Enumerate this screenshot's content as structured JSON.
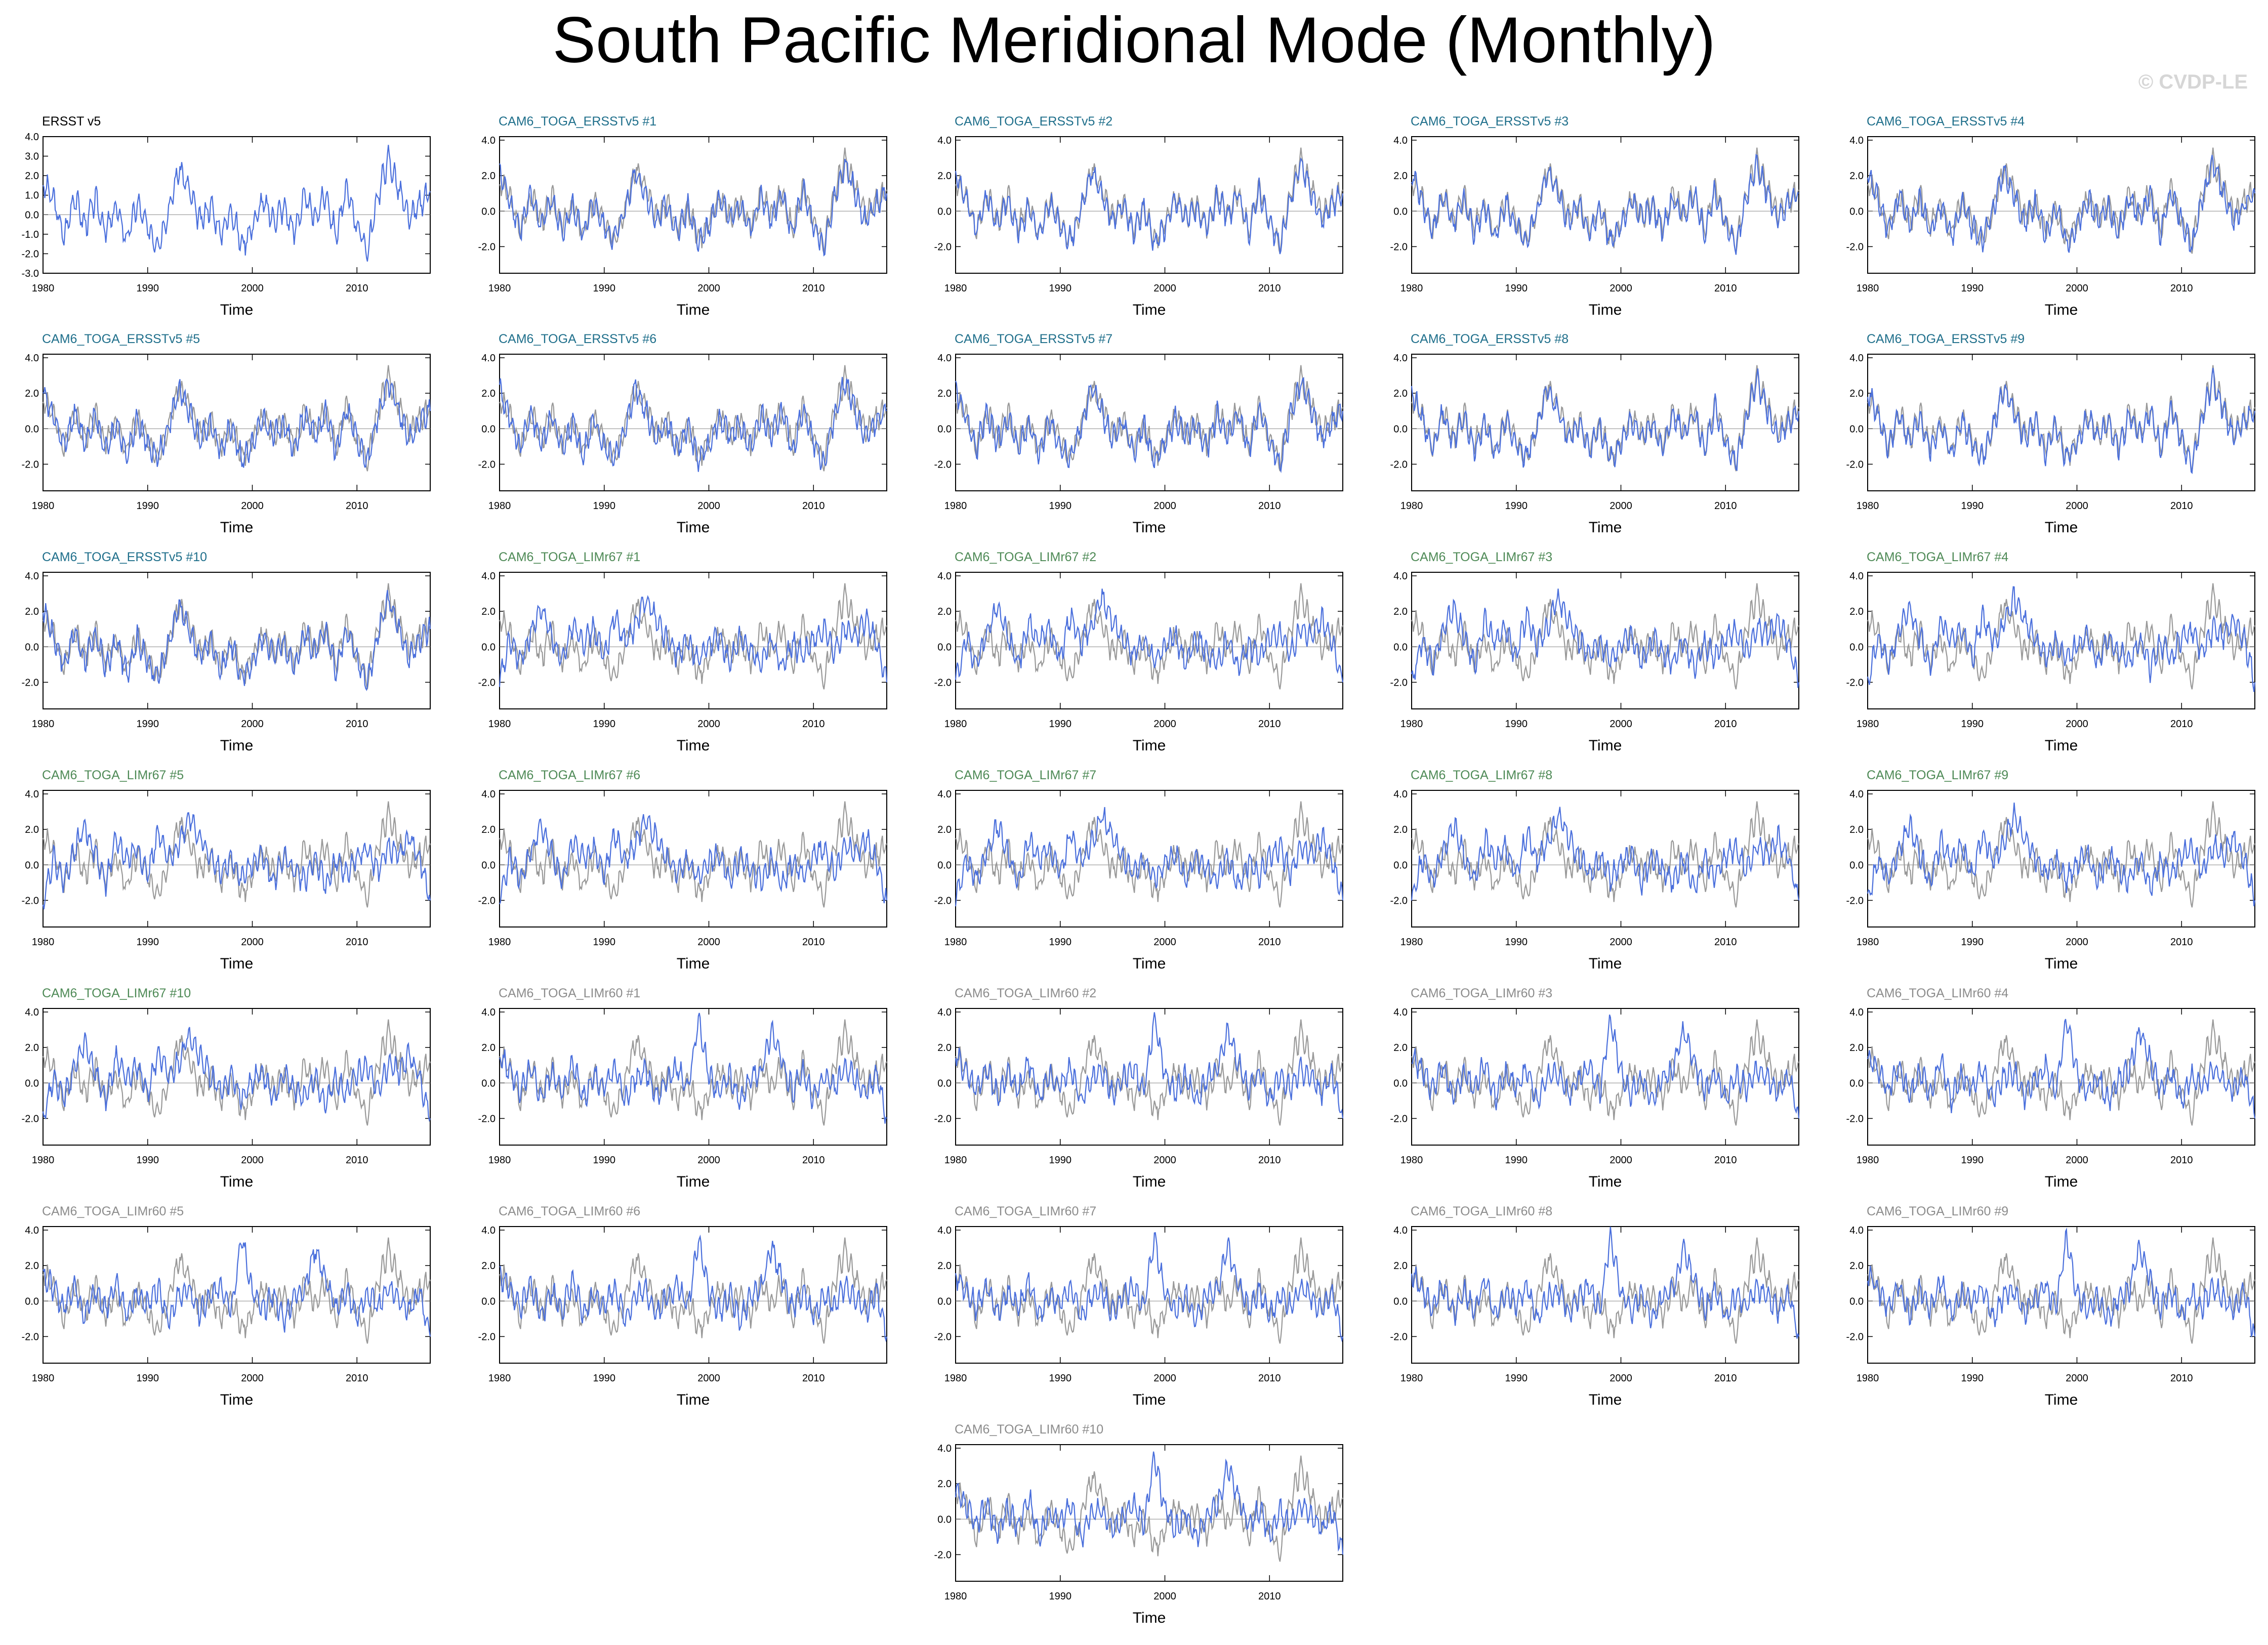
{
  "title": "South Pacific Meridional Mode (Monthly)",
  "watermark": "© CVDP-LE",
  "colors": {
    "observed": "#999999",
    "simulated": "#4a6fdc",
    "zero_line": "#888888",
    "title_ersst": "#000000",
    "title_ersst_members": "#1f6f8b",
    "title_limr67": "#4e8a56",
    "title_limr60": "#8c8c8c"
  },
  "chart_data": {
    "type": "line",
    "xlabel": "Time",
    "xlim": [
      1980,
      2017
    ],
    "xticks": [
      1980,
      1990,
      2000,
      2010
    ],
    "xtick_labels": [
      "1980",
      "1990",
      "2000",
      "2010"
    ],
    "ylim_obs": [
      -3.0,
      4.0
    ],
    "yticks_obs": [
      4.0,
      3.0,
      2.0,
      1.0,
      0.0,
      -1.0,
      -2.0,
      -3.0
    ],
    "ytick_labels_obs": [
      "4.0",
      "3.0",
      "2.0",
      "1.0",
      "0.0",
      "-1.0",
      "-2.0",
      "-3.0"
    ],
    "ylim": [
      -3.5,
      4.2
    ],
    "yticks": [
      4.0,
      2.0,
      0.0,
      -2.0
    ],
    "ytick_labels": [
      "4.0",
      "2.0",
      "0.0",
      "-2.0"
    ],
    "zero_line": true,
    "observed_series": {
      "name": "ERSST v5",
      "x": [
        1980,
        1981,
        1982,
        1983,
        1984,
        1985,
        1986,
        1987,
        1988,
        1989,
        1990,
        1991,
        1992,
        1993,
        1994,
        1995,
        1996,
        1997,
        1998,
        1999,
        2000,
        2001,
        2002,
        2003,
        2004,
        2005,
        2006,
        2007,
        2008,
        2009,
        2010,
        2011,
        2012,
        2013,
        2014,
        2015,
        2016,
        2017
      ],
      "y": [
        1.6,
        0.8,
        -1.2,
        1.0,
        -0.6,
        0.8,
        -0.9,
        0.4,
        -1.3,
        0.6,
        -0.7,
        -1.5,
        0.2,
        2.4,
        1.2,
        -0.4,
        0.5,
        -1.0,
        0.3,
        -1.6,
        -0.6,
        0.7,
        -0.3,
        0.4,
        -0.9,
        0.9,
        -0.2,
        1.1,
        -1.1,
        1.3,
        -0.5,
        -1.9,
        1.0,
        2.9,
        1.3,
        -0.3,
        0.6,
        1.2
      ]
    },
    "panels": [
      {
        "title": "ERSST v5",
        "group": "obs"
      },
      {
        "title": "CAM6_TOGA_ERSSTv5 #1",
        "group": "ersst"
      },
      {
        "title": "CAM6_TOGA_ERSSTv5 #2",
        "group": "ersst"
      },
      {
        "title": "CAM6_TOGA_ERSSTv5 #3",
        "group": "ersst"
      },
      {
        "title": "CAM6_TOGA_ERSSTv5 #4",
        "group": "ersst"
      },
      {
        "title": "CAM6_TOGA_ERSSTv5 #5",
        "group": "ersst"
      },
      {
        "title": "CAM6_TOGA_ERSSTv5 #6",
        "group": "ersst"
      },
      {
        "title": "CAM6_TOGA_ERSSTv5 #7",
        "group": "ersst"
      },
      {
        "title": "CAM6_TOGA_ERSSTv5 #8",
        "group": "ersst"
      },
      {
        "title": "CAM6_TOGA_ERSSTv5 #9",
        "group": "ersst"
      },
      {
        "title": "CAM6_TOGA_ERSSTv5 #10",
        "group": "ersst"
      },
      {
        "title": "CAM6_TOGA_LIMr67 #1",
        "group": "limr67"
      },
      {
        "title": "CAM6_TOGA_LIMr67 #2",
        "group": "limr67"
      },
      {
        "title": "CAM6_TOGA_LIMr67 #3",
        "group": "limr67"
      },
      {
        "title": "CAM6_TOGA_LIMr67 #4",
        "group": "limr67"
      },
      {
        "title": "CAM6_TOGA_LIMr67 #5",
        "group": "limr67"
      },
      {
        "title": "CAM6_TOGA_LIMr67 #6",
        "group": "limr67"
      },
      {
        "title": "CAM6_TOGA_LIMr67 #7",
        "group": "limr67"
      },
      {
        "title": "CAM6_TOGA_LIMr67 #8",
        "group": "limr67"
      },
      {
        "title": "CAM6_TOGA_LIMr67 #9",
        "group": "limr67"
      },
      {
        "title": "CAM6_TOGA_LIMr67 #10",
        "group": "limr67"
      },
      {
        "title": "CAM6_TOGA_LIMr60 #1",
        "group": "limr60"
      },
      {
        "title": "CAM6_TOGA_LIMr60 #2",
        "group": "limr60"
      },
      {
        "title": "CAM6_TOGA_LIMr60 #3",
        "group": "limr60"
      },
      {
        "title": "CAM6_TOGA_LIMr60 #4",
        "group": "limr60"
      },
      {
        "title": "CAM6_TOGA_LIMr60 #5",
        "group": "limr60"
      },
      {
        "title": "CAM6_TOGA_LIMr60 #6",
        "group": "limr60"
      },
      {
        "title": "CAM6_TOGA_LIMr60 #7",
        "group": "limr60"
      },
      {
        "title": "CAM6_TOGA_LIMr60 #8",
        "group": "limr60"
      },
      {
        "title": "CAM6_TOGA_LIMr60 #9",
        "group": "limr60"
      },
      {
        "title": "CAM6_TOGA_LIMr60 #10",
        "group": "limr60"
      }
    ],
    "group_series": {
      "ersst": {
        "x": [
          1980,
          1981,
          1982,
          1983,
          1984,
          1985,
          1986,
          1987,
          1988,
          1989,
          1990,
          1991,
          1992,
          1993,
          1994,
          1995,
          1996,
          1997,
          1998,
          1999,
          2000,
          2001,
          2002,
          2003,
          2004,
          2005,
          2006,
          2007,
          2008,
          2009,
          2010,
          2011,
          2012,
          2013,
          2014,
          2015,
          2016,
          2017
        ],
        "y": [
          2.2,
          0.6,
          -1.1,
          0.9,
          -0.8,
          0.7,
          -1.2,
          0.3,
          -1.5,
          0.5,
          -0.9,
          -1.6,
          0.1,
          2.3,
          0.9,
          -0.6,
          0.4,
          -1.3,
          0.2,
          -1.8,
          -0.9,
          0.6,
          -0.4,
          0.2,
          -1.1,
          0.8,
          -0.4,
          1.0,
          -1.3,
          1.2,
          -0.7,
          -2.0,
          0.7,
          2.7,
          1.0,
          -0.6,
          0.4,
          1.0
        ]
      },
      "limr67": {
        "x": [
          1980,
          1981,
          1982,
          1983,
          1984,
          1985,
          1986,
          1987,
          1988,
          1989,
          1990,
          1991,
          1992,
          1993,
          1994,
          1995,
          1996,
          1997,
          1998,
          1999,
          2000,
          2001,
          2002,
          2003,
          2004,
          2005,
          2006,
          2007,
          2008,
          2009,
          2010,
          2011,
          2012,
          2013,
          2014,
          2015,
          2016,
          2017
        ],
        "y": [
          -2.0,
          0.4,
          -0.9,
          0.8,
          2.2,
          0.6,
          -1.0,
          1.4,
          0.3,
          1.0,
          -0.6,
          1.8,
          0.2,
          1.2,
          2.8,
          1.5,
          0.4,
          -0.5,
          0.3,
          -0.8,
          0.1,
          0.6,
          -1.0,
          0.5,
          -0.3,
          -0.9,
          0.4,
          -1.2,
          0.2,
          -0.6,
          0.5,
          0.9,
          -0.4,
          1.0,
          0.6,
          1.5,
          0.3,
          -2.0
        ]
      },
      "limr60": {
        "x": [
          1980,
          1981,
          1982,
          1983,
          1984,
          1985,
          1986,
          1987,
          1988,
          1989,
          1990,
          1991,
          1992,
          1993,
          1994,
          1995,
          1996,
          1997,
          1998,
          1999,
          2000,
          2001,
          2002,
          2003,
          2004,
          2005,
          2006,
          2007,
          2008,
          2009,
          2010,
          2011,
          2012,
          2013,
          2014,
          2015,
          2016,
          2017
        ],
        "y": [
          1.5,
          0.7,
          -0.4,
          0.9,
          -0.8,
          0.6,
          -0.5,
          1.2,
          -0.9,
          0.4,
          -0.2,
          0.8,
          -1.0,
          0.3,
          0.6,
          -0.7,
          0.2,
          0.9,
          -0.4,
          3.6,
          0.5,
          -0.6,
          0.4,
          -1.1,
          0.3,
          0.7,
          3.0,
          1.2,
          -0.5,
          0.6,
          -0.9,
          0.4,
          -0.3,
          0.8,
          0.2,
          -0.6,
          0.5,
          -2.0
        ]
      }
    }
  }
}
